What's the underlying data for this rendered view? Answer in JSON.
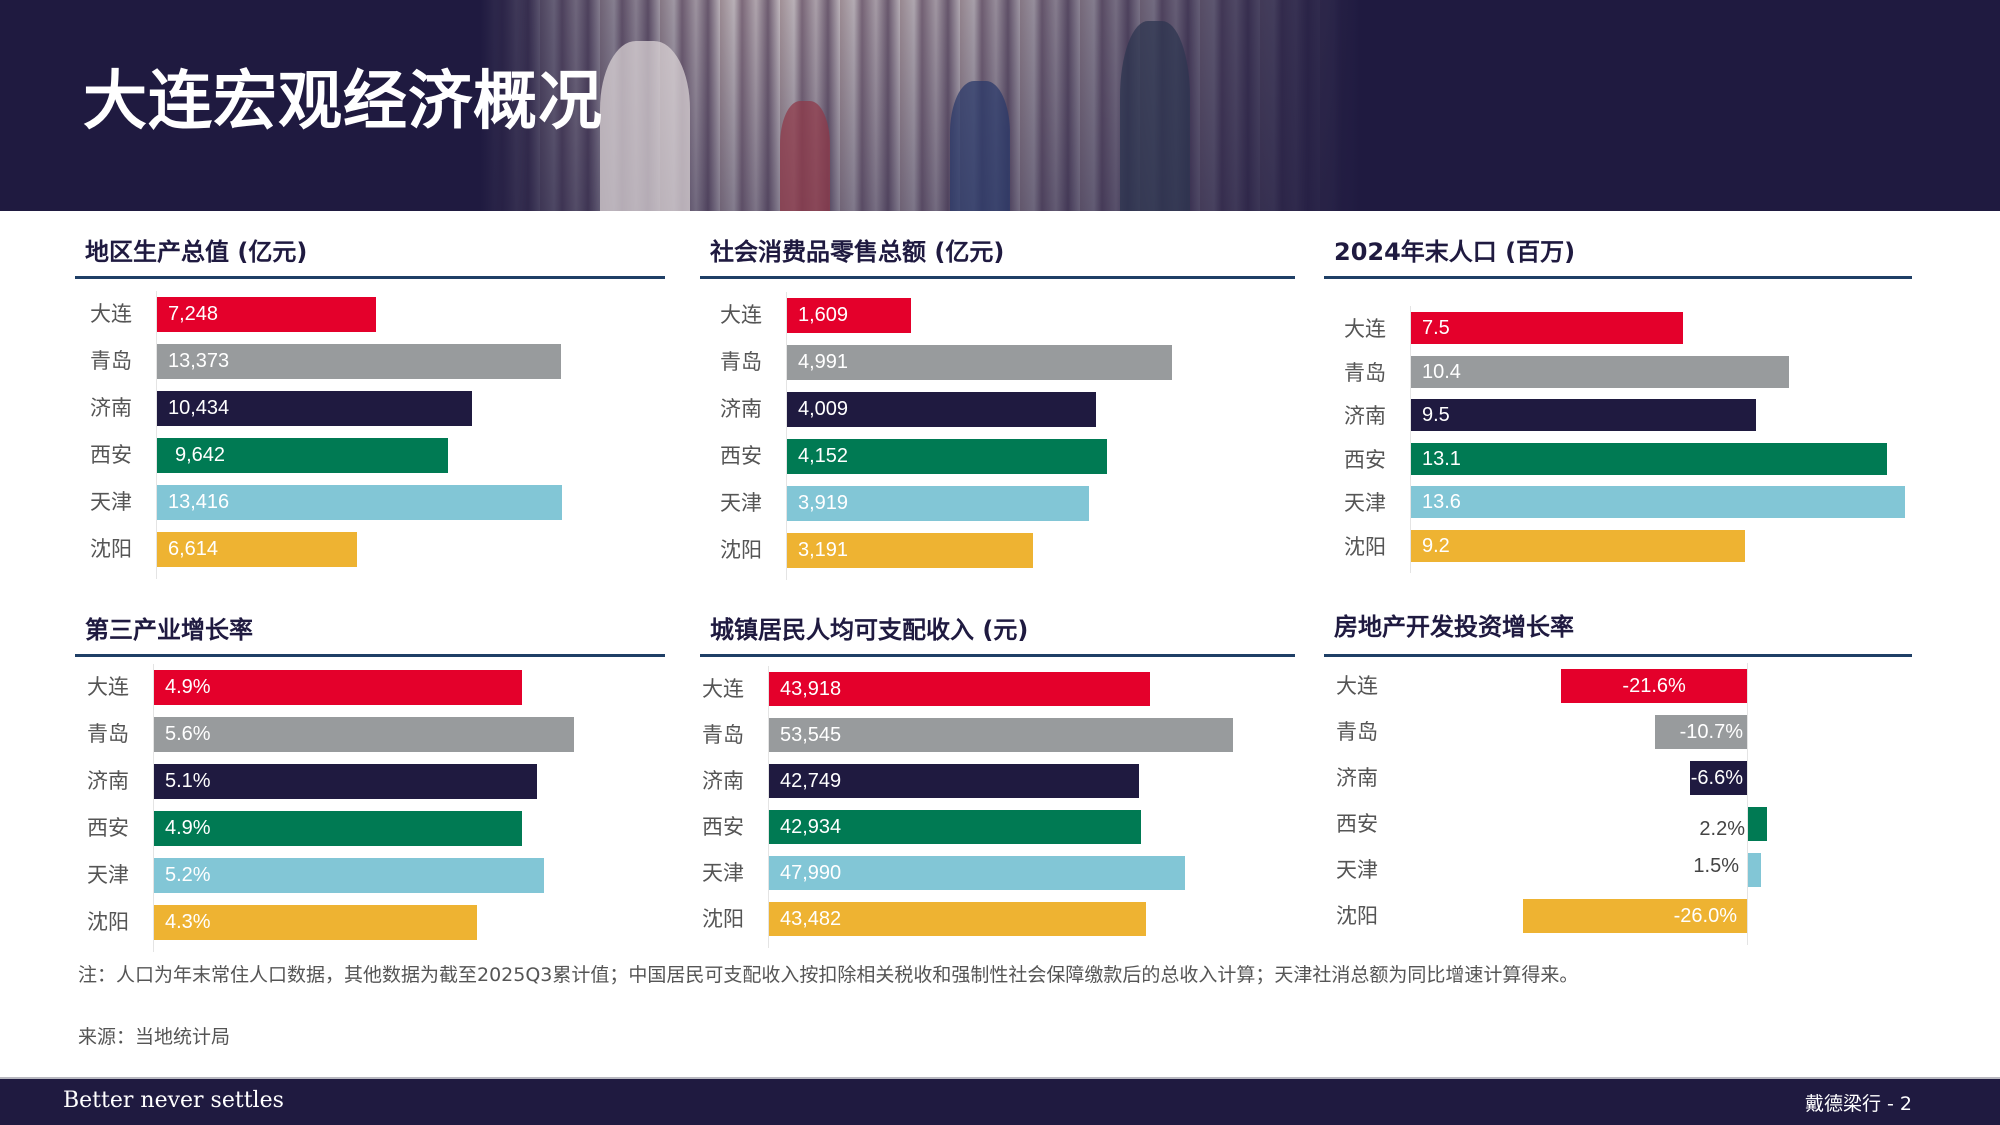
{
  "header": {
    "title": "大连宏观经济概况"
  },
  "colors": {
    "大连": "#E4002B",
    "青岛": "#989B9D",
    "济南": "#1F1A40",
    "西安": "#007A53",
    "天津": "#82C6D6",
    "沈阳": "#EEB332",
    "navy": "#1F1A40",
    "rule": "#1F3F66"
  },
  "chart_data": [
    {
      "type": "bar",
      "orientation": "horizontal",
      "title": "地区生产总值 (亿元)",
      "categories": [
        "大连",
        "青岛",
        "济南",
        "西安",
        "天津",
        "沈阳"
      ],
      "values": [
        7248,
        13373,
        10434,
        9642,
        13416,
        6614
      ],
      "labels": [
        "7,248",
        "13,373",
        "10,434",
        "9,642",
        "13,416",
        "6,614"
      ],
      "xlabel": "",
      "ylabel": "",
      "grid": false
    },
    {
      "type": "bar",
      "orientation": "horizontal",
      "title": "社会消费品零售总额 (亿元)",
      "categories": [
        "大连",
        "青岛",
        "济南",
        "西安",
        "天津",
        "沈阳"
      ],
      "values": [
        1609,
        4991,
        4009,
        4152,
        3919,
        3191
      ],
      "labels": [
        "1,609",
        "4,991",
        "4,009",
        "4,152",
        "3,919",
        "3,191"
      ],
      "xlabel": "",
      "ylabel": "",
      "grid": false
    },
    {
      "type": "bar",
      "orientation": "horizontal",
      "title": "2024年末人口 (百万)",
      "categories": [
        "大连",
        "青岛",
        "济南",
        "西安",
        "天津",
        "沈阳"
      ],
      "values": [
        7.5,
        10.4,
        9.5,
        13.1,
        13.6,
        9.2
      ],
      "labels": [
        "7.5",
        "10.4",
        "9.5",
        "13.1",
        "13.6",
        "9.2"
      ],
      "xlabel": "",
      "ylabel": "",
      "grid": false
    },
    {
      "type": "bar",
      "orientation": "horizontal",
      "title": "第三产业增长率",
      "categories": [
        "大连",
        "青岛",
        "济南",
        "西安",
        "天津",
        "沈阳"
      ],
      "values": [
        4.9,
        5.6,
        5.1,
        4.9,
        5.2,
        4.3
      ],
      "labels": [
        "4.9%",
        "5.6%",
        "5.1%",
        "4.9%",
        "5.2%",
        "4.3%"
      ],
      "xlabel": "",
      "ylabel": "",
      "grid": false
    },
    {
      "type": "bar",
      "orientation": "horizontal",
      "title": "城镇居民人均可支配收入 (元)",
      "categories": [
        "大连",
        "青岛",
        "济南",
        "西安",
        "天津",
        "沈阳"
      ],
      "values": [
        43918,
        53545,
        42749,
        42934,
        47990,
        43482
      ],
      "labels": [
        "43,918",
        "53,545",
        "42,749",
        "42,934",
        "47,990",
        "43,482"
      ],
      "xlabel": "",
      "ylabel": "",
      "grid": false
    },
    {
      "type": "bar",
      "orientation": "horizontal",
      "title": "房地产开发投资增长率",
      "categories": [
        "大连",
        "青岛",
        "济南",
        "西安",
        "天津",
        "沈阳"
      ],
      "values": [
        -21.6,
        -10.7,
        -6.6,
        2.2,
        1.5,
        -26.0
      ],
      "labels": [
        "-21.6%",
        "-10.7%",
        "-6.6%",
        "2.2%",
        "1.5%",
        "-26.0%"
      ],
      "xlabel": "",
      "ylabel": "",
      "grid": false
    }
  ],
  "notes": {
    "note": "注：人口为年末常住人口数据，其他数据为截至2025Q3累计值；中国居民可支配收入按扣除相关税收和强制性社会保障缴款后的总收入计算；天津社消总额为同比增速计算得来。",
    "source": "来源：当地统计局"
  },
  "footer": {
    "tagline": "Better never settles",
    "page": "戴德梁行 - 2"
  }
}
